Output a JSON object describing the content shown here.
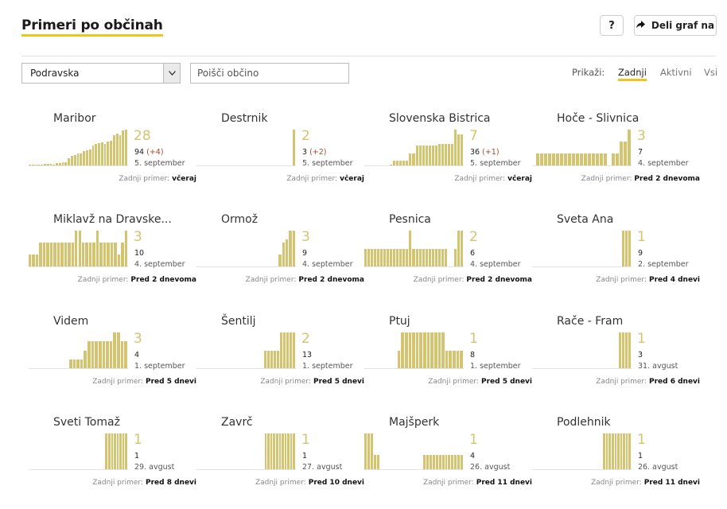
{
  "header": {
    "title": "Primeri po občinah",
    "help_label": "?",
    "share_label": "Deli graf na"
  },
  "toolbar": {
    "region_value": "Podravska",
    "search_placeholder": "Poišči občino",
    "show_label": "Prikaži:",
    "filters": [
      "Zadnji",
      "Aktivni",
      "Vsi"
    ],
    "active_filter": "Zadnji"
  },
  "last_case_label": "Zadnji primer:",
  "accent_color": "#f0c419",
  "bar_color": "#d4c36f",
  "municipalities": [
    {
      "name": "Maribor",
      "count": "28",
      "total": "94",
      "delta": "(+4)",
      "date": "5. september",
      "last": "včeraj",
      "bars": [
        0.03,
        0.03,
        0.03,
        0.03,
        0.03,
        0.04,
        0.04,
        0.05,
        0.03,
        0.06,
        0.07,
        0.1,
        0.1,
        0.2,
        0.27,
        0.3,
        0.34,
        0.34,
        0.4,
        0.43,
        0.45,
        0.55,
        0.6,
        0.62,
        0.64,
        0.6,
        0.66,
        0.7,
        0.85,
        0.9,
        0.85,
        0.97,
        1.0
      ]
    },
    {
      "name": "Destrnik",
      "count": "2",
      "total": "3",
      "delta": "(+2)",
      "date": "5. september",
      "last": "včeraj",
      "bars": [
        0,
        0,
        0,
        0,
        0,
        0,
        0,
        0,
        0,
        0,
        0,
        0,
        0,
        0,
        0,
        0,
        0,
        0,
        0,
        0,
        0,
        0,
        0,
        0,
        0,
        0,
        0,
        0,
        0,
        0,
        0,
        0,
        1.0
      ]
    },
    {
      "name": "Slovenska Bistrica",
      "count": "7",
      "total": "36",
      "delta": "(+1)",
      "date": "5. september",
      "last": "včeraj",
      "bars": [
        0,
        0,
        0,
        0,
        0,
        0,
        0,
        0,
        0.03,
        0.14,
        0.14,
        0.14,
        0.14,
        0.14,
        0.33,
        0.33,
        0.55,
        0.55,
        0.55,
        0.55,
        0.55,
        0.55,
        0.55,
        0.6,
        0.6,
        0.6,
        0.6,
        0.6,
        1.0,
        0.86,
        0.86
      ]
    },
    {
      "name": "Hoče - Slivnica",
      "count": "3",
      "total": "7",
      "delta": "",
      "date": "4. september",
      "last": "Pred 2 dnevoma",
      "bars": [
        0.33,
        0.33,
        0.33,
        0.33,
        0.33,
        0.33,
        0.33,
        0.33,
        0.33,
        0.33,
        0.33,
        0.33,
        0.33,
        0.33,
        0.33,
        0.33,
        0.33,
        0.33,
        0,
        0.33,
        0.33,
        0.67,
        0.67,
        1.0
      ]
    },
    {
      "name": "Miklavž na Dravske...",
      "count": "3",
      "total": "10",
      "delta": "",
      "date": "4. september",
      "last": "Pred 2 dnevoma",
      "bars": [
        0.33,
        0.33,
        0.33,
        0.67,
        0.67,
        0.67,
        0.67,
        0.67,
        0.67,
        0.67,
        0.67,
        0.67,
        0.67,
        1.0,
        1.0,
        0.67,
        0.67,
        0.67,
        0.67,
        1.0,
        0.67,
        0.67,
        0.67,
        0.67,
        0.67,
        0.33,
        0.67,
        1.0
      ]
    },
    {
      "name": "Ormož",
      "count": "3",
      "total": "9",
      "delta": "",
      "date": "4. september",
      "last": "Pred 2 dnevoma",
      "bars": [
        0,
        0,
        0,
        0,
        0,
        0,
        0,
        0,
        0,
        0,
        0,
        0,
        0,
        0,
        0,
        0,
        0,
        0,
        0,
        0,
        0,
        0,
        0,
        0,
        0.33,
        0.67,
        0.75,
        1.0,
        1.0
      ]
    },
    {
      "name": "Pesnica",
      "count": "2",
      "total": "6",
      "delta": "",
      "date": "4. september",
      "last": "Pred 2 dnevoma",
      "bars": [
        0.5,
        0.5,
        0.5,
        0.5,
        0.5,
        0.5,
        0.5,
        0.5,
        0.5,
        0.5,
        0.5,
        0.5,
        0.5,
        0.5,
        1.0,
        0.5,
        0.5,
        0.5,
        0.5,
        0.5,
        0.5,
        0.5,
        0.5,
        0.5,
        0.5,
        0.5,
        0,
        0,
        0.5,
        1.0,
        1.0
      ]
    },
    {
      "name": "Sveta Ana",
      "count": "1",
      "total": "9",
      "delta": "",
      "date": "2. september",
      "last": "Pred 4 dnevi",
      "bars": [
        0,
        0,
        0,
        0,
        0,
        0,
        0,
        0,
        0,
        0,
        0,
        0,
        0,
        0,
        0,
        0,
        0,
        0,
        0,
        0,
        0,
        0,
        0,
        0,
        0,
        0,
        0,
        0,
        1.0,
        1.0,
        1.0
      ]
    },
    {
      "name": "Videm",
      "count": "3",
      "total": "4",
      "delta": "",
      "date": "1. september",
      "last": "Pred 5 dnevi",
      "bars": [
        0,
        0,
        0,
        0,
        0,
        0,
        0,
        0,
        0,
        0,
        0,
        0.25,
        0.25,
        0.25,
        0.25,
        0.5,
        0.75,
        0.75,
        0.75,
        0.75,
        0.75,
        0.75,
        0.75,
        1.0,
        1.0,
        0.75,
        0.75
      ]
    },
    {
      "name": "Šentilj",
      "count": "2",
      "total": "13",
      "delta": "",
      "date": "1. september",
      "last": "Pred 5 dnevi",
      "bars": [
        0,
        0,
        0,
        0,
        0,
        0,
        0,
        0,
        0,
        0,
        0,
        0,
        0,
        0,
        0,
        0,
        0,
        0,
        0,
        0,
        0,
        0.5,
        0.5,
        0.5,
        0.5,
        0.5,
        1.0,
        1.0,
        1.0,
        1.0,
        1.0
      ]
    },
    {
      "name": "Ptuj",
      "count": "1",
      "total": "8",
      "delta": "",
      "date": "1. september",
      "last": "Pred 5 dnevi",
      "bars": [
        0,
        0,
        0,
        0,
        0,
        0,
        0,
        0,
        0,
        0.5,
        1.0,
        1.0,
        1.0,
        1.0,
        1.0,
        1.0,
        1.0,
        1.0,
        1.0,
        1.0,
        1.0,
        1.0,
        0.5,
        0.5,
        0.5,
        0.5,
        0.5
      ]
    },
    {
      "name": "Rače - Fram",
      "count": "1",
      "total": "3",
      "delta": "",
      "date": "31. avgust",
      "last": "Pred 6 dnevi",
      "bars": [
        0,
        0,
        0,
        0,
        0,
        0,
        0,
        0,
        0,
        0,
        0,
        0,
        0,
        0,
        0,
        0,
        0,
        0,
        0,
        0,
        0,
        0,
        0,
        0,
        0,
        0,
        0,
        1.0,
        1.0,
        1.0,
        1.0
      ]
    },
    {
      "name": "Sveti Tomaž",
      "count": "1",
      "total": "1",
      "delta": "",
      "date": "29. avgust",
      "last": "Pred 8 dnevi",
      "bars": [
        0,
        0,
        0,
        0,
        0,
        0,
        0,
        0,
        0,
        0,
        0,
        0,
        0,
        0,
        0,
        0,
        0,
        0,
        0,
        0,
        0,
        0,
        0,
        0,
        0,
        0,
        0,
        1.0,
        1.0,
        1.0,
        1.0,
        1.0,
        1.0,
        1.0,
        1.0
      ]
    },
    {
      "name": "Zavrč",
      "count": "1",
      "total": "1",
      "delta": "",
      "date": "27. avgust",
      "last": "Pred 10 dnevi",
      "bars": [
        0,
        0,
        0,
        0,
        0,
        0,
        0,
        0,
        0,
        0,
        0,
        0,
        0,
        0,
        0,
        0,
        0,
        0,
        0,
        0,
        0,
        0,
        0,
        0,
        1.0,
        1.0,
        1.0,
        1.0,
        1.0,
        1.0,
        1.0,
        1.0,
        1.0,
        1.0,
        1.0
      ]
    },
    {
      "name": "Majšperk",
      "count": "1",
      "total": "4",
      "delta": "",
      "date": "26. avgust",
      "last": "Pred 11 dnevi",
      "bars": [
        1.0,
        1.0,
        1.0,
        0.4,
        0.4,
        0,
        0,
        0,
        0,
        0,
        0,
        0,
        0,
        0,
        0,
        0,
        0,
        0,
        0,
        0.4,
        0.4,
        0.4,
        0.4,
        0.4,
        0.4,
        0.4,
        0.4,
        0.4,
        0.4,
        0.4,
        0.4,
        0.4
      ]
    },
    {
      "name": "Podlehnik",
      "count": "1",
      "total": "1",
      "delta": "",
      "date": "26. avgust",
      "last": "Pred 11 dnevi",
      "bars": [
        0,
        0,
        0,
        0,
        0,
        0,
        0,
        0,
        0,
        0,
        0,
        0,
        0,
        0,
        0,
        0,
        0,
        0,
        0,
        0,
        0,
        0,
        0,
        0,
        0,
        1.0,
        1.0,
        1.0,
        1.0,
        1.0,
        1.0,
        1.0,
        1.0,
        1.0,
        1.0
      ]
    }
  ]
}
